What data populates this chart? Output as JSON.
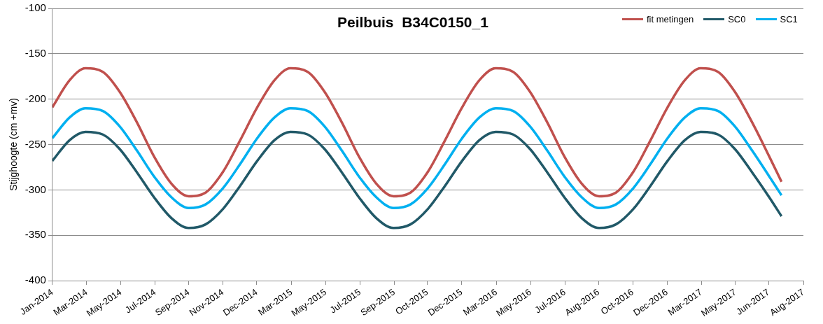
{
  "chart_data": {
    "type": "line",
    "title": "Peilbuis  B34C0150_1",
    "ylabel": "Stijghoogte (cm +mv)",
    "x": [
      "2014-01-01",
      "2014-02-01",
      "2014-03-01",
      "2014-04-01",
      "2014-05-01",
      "2014-06-01",
      "2014-07-01",
      "2014-08-01",
      "2014-09-01",
      "2014-10-01",
      "2014-11-01",
      "2014-12-01",
      "2015-01-01",
      "2015-02-01",
      "2015-03-01",
      "2015-04-01",
      "2015-05-01",
      "2015-06-01",
      "2015-07-01",
      "2015-08-01",
      "2015-09-01",
      "2015-10-01",
      "2015-11-01",
      "2015-12-01",
      "2016-01-01",
      "2016-02-01",
      "2016-03-01",
      "2016-04-01",
      "2016-05-01",
      "2016-06-01",
      "2016-07-01",
      "2016-08-01",
      "2016-09-01",
      "2016-10-01",
      "2016-11-01",
      "2016-12-01",
      "2017-01-01",
      "2017-02-01",
      "2017-03-01",
      "2017-04-01",
      "2017-05-01",
      "2017-06-01",
      "2017-07-01",
      "2017-07-23"
    ],
    "series": [
      {
        "name": "fit metingen",
        "color": "#c0504d",
        "values": [
          -209,
          -179,
          -166,
          -170,
          -192,
          -226,
          -263,
          -293,
          -307,
          -303,
          -280,
          -246,
          -209,
          -179,
          -166,
          -170,
          -192,
          -226,
          -263,
          -293,
          -307,
          -303,
          -280,
          -246,
          -209,
          -179,
          -166,
          -170,
          -192,
          -226,
          -263,
          -293,
          -307,
          -303,
          -280,
          -246,
          -209,
          -179,
          -166,
          -170,
          -192,
          -226,
          -263,
          -291
        ]
      },
      {
        "name": "SC0",
        "color": "#215968",
        "values": [
          -268,
          -245,
          -236,
          -239,
          -255,
          -281,
          -308,
          -331,
          -342,
          -338,
          -321,
          -296,
          -268,
          -245,
          -236,
          -239,
          -255,
          -281,
          -308,
          -331,
          -342,
          -338,
          -321,
          -296,
          -268,
          -245,
          -236,
          -239,
          -255,
          -281,
          -308,
          -331,
          -342,
          -338,
          -321,
          -296,
          -268,
          -245,
          -236,
          -239,
          -255,
          -281,
          -308,
          -329
        ]
      },
      {
        "name": "SC1",
        "color": "#00b0f0",
        "values": [
          -243,
          -220,
          -210,
          -213,
          -230,
          -257,
          -285,
          -308,
          -320,
          -316,
          -298,
          -272,
          -243,
          -220,
          -210,
          -213,
          -230,
          -257,
          -285,
          -308,
          -320,
          -316,
          -298,
          -272,
          -243,
          -220,
          -210,
          -213,
          -230,
          -257,
          -285,
          -308,
          -320,
          -316,
          -298,
          -272,
          -243,
          -220,
          -210,
          -213,
          -230,
          -257,
          -285,
          -306
        ]
      }
    ],
    "xlim": [
      "2014-01-01",
      "2017-08-31"
    ],
    "xticks": [
      {
        "value": "2014-01-01",
        "label": "Jan-2014"
      },
      {
        "value": "2014-03-03",
        "label": "Mar-2014"
      },
      {
        "value": "2014-05-03",
        "label": "May-2014"
      },
      {
        "value": "2014-07-03",
        "label": "Jul-2014"
      },
      {
        "value": "2014-09-01",
        "label": "Sep-2014"
      },
      {
        "value": "2014-11-01",
        "label": "Nov-2014"
      },
      {
        "value": "2014-12-31",
        "label": "Dec-2014"
      },
      {
        "value": "2015-03-03",
        "label": "Mar-2015"
      },
      {
        "value": "2015-05-03",
        "label": "May-2015"
      },
      {
        "value": "2015-07-03",
        "label": "Jul-2015"
      },
      {
        "value": "2015-09-02",
        "label": "Sep-2015"
      },
      {
        "value": "2015-10-31",
        "label": "Oct-2015"
      },
      {
        "value": "2015-12-31",
        "label": "Dec-2015"
      },
      {
        "value": "2016-03-02",
        "label": "Mar-2016"
      },
      {
        "value": "2016-05-02",
        "label": "May-2016"
      },
      {
        "value": "2016-07-02",
        "label": "Jul-2016"
      },
      {
        "value": "2016-08-31",
        "label": "Aug-2016"
      },
      {
        "value": "2016-10-31",
        "label": "Oct-2016"
      },
      {
        "value": "2016-12-31",
        "label": "Dec-2016"
      },
      {
        "value": "2017-03-02",
        "label": "Mar-2017"
      },
      {
        "value": "2017-05-02",
        "label": "May-2017"
      },
      {
        "value": "2017-06-30",
        "label": "Jun-2017"
      },
      {
        "value": "2017-08-31",
        "label": "Aug-2017"
      }
    ],
    "ylim": [
      -400,
      -100
    ],
    "yticks": [
      -400,
      -350,
      -300,
      -250,
      -200,
      -150,
      -100
    ],
    "grid": "y",
    "legend": "top right",
    "marker": "none",
    "line_style": "solid"
  }
}
